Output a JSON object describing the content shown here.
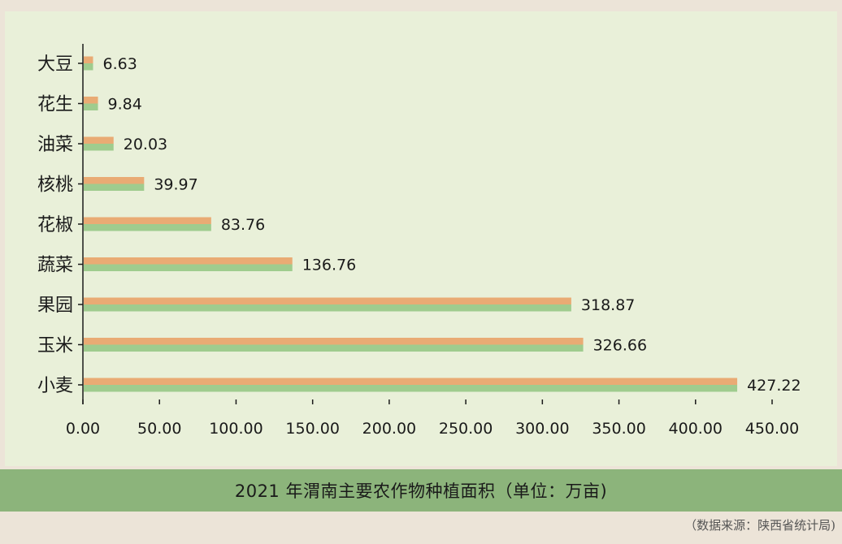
{
  "chart_data": {
    "type": "bar",
    "orientation": "horizontal",
    "categories": [
      "大豆",
      "花生",
      "油菜",
      "核桃",
      "花椒",
      "蔬菜",
      "果园",
      "玉米",
      "小麦"
    ],
    "values": [
      6.63,
      9.84,
      20.03,
      39.97,
      83.76,
      136.76,
      318.87,
      326.66,
      427.22
    ],
    "value_labels": [
      "6.63",
      "9.84",
      "20.03",
      "39.97",
      "83.76",
      "136.76",
      "318.87",
      "326.66",
      "427.22"
    ],
    "xlim": [
      0,
      450
    ],
    "x_ticks": [
      "0.00",
      "50.00",
      "100.00",
      "150.00",
      "200.00",
      "250.00",
      "300.00",
      "350.00",
      "400.00",
      "450.00"
    ],
    "grid": false,
    "legend": "none",
    "bar_colors": {
      "top": "#e9ab74",
      "bottom": "#9fcc8e"
    },
    "axis_color": "#1a1a1a"
  },
  "title": "2021 年渭南主要农作物种植面积（单位：万亩)",
  "source": "（数据来源：陕西省统计局)",
  "colors": {
    "page_background": "#ece4d8",
    "panel_background": "#e9f0d9",
    "title_bar": "#8cb47b"
  }
}
